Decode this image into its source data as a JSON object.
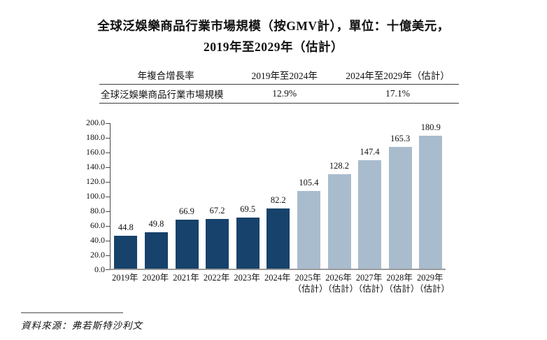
{
  "title": {
    "line1": "全球泛娛樂商品行業市場規模（按GMV計），單位：十億美元，",
    "line2": "2019年至2029年（估計）"
  },
  "cagr_table": {
    "header": [
      "年複合增長率",
      "2019年至2024年",
      "2024年至2029年（估計）"
    ],
    "row": [
      "全球泛娛樂商品行業市場規模",
      "12.9%",
      "17.1%"
    ]
  },
  "chart_data": {
    "type": "bar",
    "title": "全球泛娛樂商品行業市場規模（按GMV計），單位：十億美元，2019年至2029年（估計）",
    "unit": "十億美元",
    "categories": [
      "2019年",
      "2020年",
      "2021年",
      "2022年",
      "2023年",
      "2024年",
      "2025年（估計）",
      "2026年（估計）",
      "2027年（估計）",
      "2028年（估計）",
      "2029年（估計）"
    ],
    "values": [
      44.8,
      49.8,
      66.9,
      67.2,
      69.5,
      82.2,
      105.4,
      128.2,
      147.4,
      165.3,
      180.9
    ],
    "xlabels": [
      [
        "2019年"
      ],
      [
        "2020年"
      ],
      [
        "2021年"
      ],
      [
        "2022年"
      ],
      [
        "2023年"
      ],
      [
        "2024年"
      ],
      [
        "2025年",
        "（估計）"
      ],
      [
        "2026年",
        "（估計）"
      ],
      [
        "2027年",
        "（估計）"
      ],
      [
        "2028年",
        "（估計）"
      ],
      [
        "2029年",
        "（估計）"
      ]
    ],
    "yticks": [
      "200.0",
      "180.0",
      "160.0",
      "140.0",
      "120.0",
      "100.0",
      "80.0",
      "60.0",
      "40.0",
      "20.0",
      "0.0"
    ],
    "ylim": [
      0,
      200
    ],
    "estimate_start_index": 6,
    "colors": {
      "actual": "#17426B",
      "estimate": "#A9BCCE"
    },
    "legend": "none",
    "grid": false,
    "xlabel": "",
    "ylabel": ""
  },
  "source": {
    "text": "資料來源：弗若斯特沙利文"
  }
}
